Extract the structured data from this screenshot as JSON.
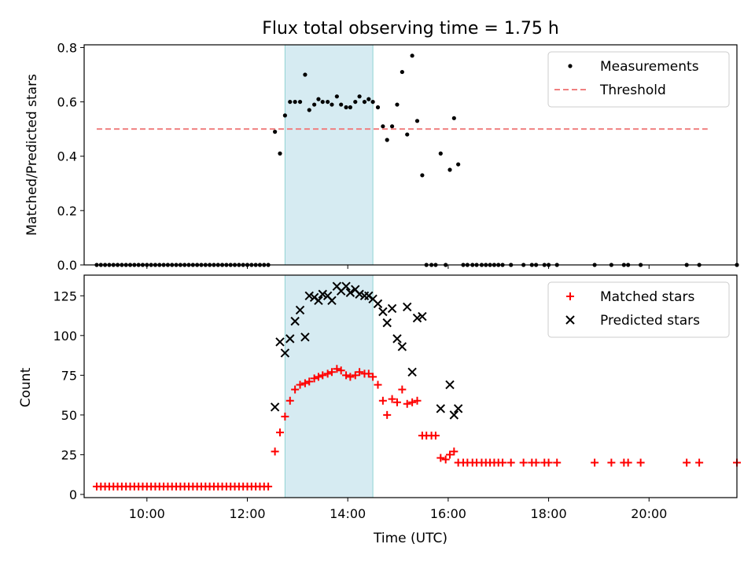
{
  "chart_data": [
    {
      "type": "scatter",
      "title": "Flux total observing time = 1.75 h",
      "xlabel": "",
      "ylabel": "Matched/Predicted stars",
      "xlim": [
        "08:45",
        "21:45"
      ],
      "ylim": [
        0,
        0.81
      ],
      "yticks": [
        "0.0",
        "0.2",
        "0.4",
        "0.6",
        "0.8"
      ],
      "highlight_span": [
        "12:45",
        "14:30"
      ],
      "legend_position": "top-right",
      "series": [
        {
          "name": "Measurements",
          "marker": "dot",
          "color": "#000000",
          "points": [
            [
              "09:00",
              0
            ],
            [
              "09:05",
              0
            ],
            [
              "09:10",
              0
            ],
            [
              "09:15",
              0
            ],
            [
              "09:20",
              0
            ],
            [
              "09:25",
              0
            ],
            [
              "09:30",
              0
            ],
            [
              "09:35",
              0
            ],
            [
              "09:40",
              0
            ],
            [
              "09:45",
              0
            ],
            [
              "09:50",
              0
            ],
            [
              "09:55",
              0
            ],
            [
              "10:00",
              0
            ],
            [
              "10:05",
              0
            ],
            [
              "10:10",
              0
            ],
            [
              "10:15",
              0
            ],
            [
              "10:20",
              0
            ],
            [
              "10:25",
              0
            ],
            [
              "10:30",
              0
            ],
            [
              "10:35",
              0
            ],
            [
              "10:40",
              0
            ],
            [
              "10:45",
              0
            ],
            [
              "10:50",
              0
            ],
            [
              "10:55",
              0
            ],
            [
              "11:00",
              0
            ],
            [
              "11:05",
              0
            ],
            [
              "11:10",
              0
            ],
            [
              "11:15",
              0
            ],
            [
              "11:20",
              0
            ],
            [
              "11:25",
              0
            ],
            [
              "11:30",
              0
            ],
            [
              "11:35",
              0
            ],
            [
              "11:40",
              0
            ],
            [
              "11:45",
              0
            ],
            [
              "11:50",
              0
            ],
            [
              "11:55",
              0
            ],
            [
              "12:00",
              0
            ],
            [
              "12:05",
              0
            ],
            [
              "12:10",
              0
            ],
            [
              "12:15",
              0
            ],
            [
              "12:20",
              0
            ],
            [
              "12:25",
              0
            ],
            [
              "12:33",
              0.49
            ],
            [
              "12:39",
              0.41
            ],
            [
              "12:45",
              0.55
            ],
            [
              "12:51",
              0.6
            ],
            [
              "12:57",
              0.6
            ],
            [
              "13:03",
              0.6
            ],
            [
              "13:09",
              0.7
            ],
            [
              "13:14",
              0.57
            ],
            [
              "13:20",
              0.59
            ],
            [
              "13:25",
              0.61
            ],
            [
              "13:30",
              0.6
            ],
            [
              "13:36",
              0.6
            ],
            [
              "13:41",
              0.59
            ],
            [
              "13:47",
              0.62
            ],
            [
              "13:52",
              0.59
            ],
            [
              "13:58",
              0.58
            ],
            [
              "14:03",
              0.58
            ],
            [
              "14:09",
              0.6
            ],
            [
              "14:14",
              0.62
            ],
            [
              "14:20",
              0.6
            ],
            [
              "14:25",
              0.61
            ],
            [
              "14:30",
              0.6
            ],
            [
              "14:36",
              0.58
            ],
            [
              "14:42",
              0.51
            ],
            [
              "14:47",
              0.46
            ],
            [
              "14:53",
              0.51
            ],
            [
              "14:59",
              0.59
            ],
            [
              "15:05",
              0.71
            ],
            [
              "15:11",
              0.48
            ],
            [
              "15:17",
              0.77
            ],
            [
              "15:23",
              0.53
            ],
            [
              "15:29",
              0.33
            ],
            [
              "15:34",
              0
            ],
            [
              "15:40",
              0
            ],
            [
              "15:45",
              0
            ],
            [
              "15:51",
              0.41
            ],
            [
              "15:57",
              0
            ],
            [
              "16:02",
              0.35
            ],
            [
              "16:07",
              0.54
            ],
            [
              "16:12",
              0.37
            ],
            [
              "16:18",
              0
            ],
            [
              "16:23",
              0
            ],
            [
              "16:29",
              0
            ],
            [
              "16:34",
              0
            ],
            [
              "16:40",
              0
            ],
            [
              "16:45",
              0
            ],
            [
              "16:50",
              0
            ],
            [
              "16:55",
              0
            ],
            [
              "17:00",
              0
            ],
            [
              "17:05",
              0
            ],
            [
              "17:15",
              0
            ],
            [
              "17:30",
              0
            ],
            [
              "17:40",
              0
            ],
            [
              "17:45",
              0
            ],
            [
              "17:55",
              0
            ],
            [
              "18:00",
              0
            ],
            [
              "18:10",
              0
            ],
            [
              "18:55",
              0
            ],
            [
              "19:15",
              0
            ],
            [
              "19:30",
              0
            ],
            [
              "19:35",
              0
            ],
            [
              "19:50",
              0
            ],
            [
              "20:45",
              0
            ],
            [
              "21:00",
              0
            ],
            [
              "21:45",
              0
            ]
          ]
        },
        {
          "name": "Threshold",
          "marker": "dashed-line",
          "color": "#f08080",
          "points": [
            [
              "09:00",
              0.5
            ],
            [
              "21:10",
              0.5
            ]
          ]
        }
      ]
    },
    {
      "type": "scatter",
      "title": "",
      "xlabel": "Time (UTC)",
      "ylabel": "Count",
      "xlim": [
        "08:45",
        "21:45"
      ],
      "ylim": [
        -2,
        138
      ],
      "yticks": [
        "0",
        "25",
        "50",
        "75",
        "100",
        "125"
      ],
      "xticks": [
        "10:00",
        "12:00",
        "14:00",
        "16:00",
        "18:00",
        "20:00"
      ],
      "highlight_span": [
        "12:45",
        "14:30"
      ],
      "legend_position": "top-right",
      "series": [
        {
          "name": "Matched stars",
          "marker": "plus",
          "color": "#ff0000",
          "points": [
            [
              "09:00",
              5
            ],
            [
              "09:05",
              5
            ],
            [
              "09:10",
              5
            ],
            [
              "09:15",
              5
            ],
            [
              "09:20",
              5
            ],
            [
              "09:25",
              5
            ],
            [
              "09:30",
              5
            ],
            [
              "09:35",
              5
            ],
            [
              "09:40",
              5
            ],
            [
              "09:45",
              5
            ],
            [
              "09:50",
              5
            ],
            [
              "09:55",
              5
            ],
            [
              "10:00",
              5
            ],
            [
              "10:05",
              5
            ],
            [
              "10:10",
              5
            ],
            [
              "10:15",
              5
            ],
            [
              "10:20",
              5
            ],
            [
              "10:25",
              5
            ],
            [
              "10:30",
              5
            ],
            [
              "10:35",
              5
            ],
            [
              "10:40",
              5
            ],
            [
              "10:45",
              5
            ],
            [
              "10:50",
              5
            ],
            [
              "10:55",
              5
            ],
            [
              "11:00",
              5
            ],
            [
              "11:05",
              5
            ],
            [
              "11:10",
              5
            ],
            [
              "11:15",
              5
            ],
            [
              "11:20",
              5
            ],
            [
              "11:25",
              5
            ],
            [
              "11:30",
              5
            ],
            [
              "11:35",
              5
            ],
            [
              "11:40",
              5
            ],
            [
              "11:45",
              5
            ],
            [
              "11:50",
              5
            ],
            [
              "11:55",
              5
            ],
            [
              "12:00",
              5
            ],
            [
              "12:05",
              5
            ],
            [
              "12:10",
              5
            ],
            [
              "12:15",
              5
            ],
            [
              "12:20",
              5
            ],
            [
              "12:25",
              5
            ],
            [
              "12:33",
              27
            ],
            [
              "12:39",
              39
            ],
            [
              "12:45",
              49
            ],
            [
              "12:51",
              59
            ],
            [
              "12:57",
              66
            ],
            [
              "13:03",
              69
            ],
            [
              "13:09",
              70
            ],
            [
              "13:14",
              71
            ],
            [
              "13:20",
              73
            ],
            [
              "13:25",
              74
            ],
            [
              "13:30",
              75
            ],
            [
              "13:36",
              76
            ],
            [
              "13:41",
              77
            ],
            [
              "13:47",
              79
            ],
            [
              "13:52",
              78
            ],
            [
              "13:58",
              75
            ],
            [
              "14:03",
              74
            ],
            [
              "14:09",
              75
            ],
            [
              "14:14",
              77
            ],
            [
              "14:20",
              76
            ],
            [
              "14:25",
              76
            ],
            [
              "14:30",
              74
            ],
            [
              "14:36",
              69
            ],
            [
              "14:42",
              59
            ],
            [
              "14:47",
              50
            ],
            [
              "14:53",
              60
            ],
            [
              "14:59",
              58
            ],
            [
              "15:05",
              66
            ],
            [
              "15:11",
              57
            ],
            [
              "15:17",
              58
            ],
            [
              "15:23",
              59
            ],
            [
              "15:29",
              37
            ],
            [
              "15:34",
              37
            ],
            [
              "15:40",
              37
            ],
            [
              "15:45",
              37
            ],
            [
              "15:51",
              23
            ],
            [
              "15:57",
              22
            ],
            [
              "16:02",
              25
            ],
            [
              "16:07",
              27
            ],
            [
              "16:12",
              20
            ],
            [
              "16:18",
              20
            ],
            [
              "16:23",
              20
            ],
            [
              "16:29",
              20
            ],
            [
              "16:34",
              20
            ],
            [
              "16:40",
              20
            ],
            [
              "16:45",
              20
            ],
            [
              "16:50",
              20
            ],
            [
              "16:55",
              20
            ],
            [
              "17:00",
              20
            ],
            [
              "17:05",
              20
            ],
            [
              "17:15",
              20
            ],
            [
              "17:30",
              20
            ],
            [
              "17:40",
              20
            ],
            [
              "17:45",
              20
            ],
            [
              "17:55",
              20
            ],
            [
              "18:00",
              20
            ],
            [
              "18:10",
              20
            ],
            [
              "18:55",
              20
            ],
            [
              "19:15",
              20
            ],
            [
              "19:30",
              20
            ],
            [
              "19:35",
              20
            ],
            [
              "19:50",
              20
            ],
            [
              "20:45",
              20
            ],
            [
              "21:00",
              20
            ],
            [
              "21:45",
              20
            ]
          ]
        },
        {
          "name": "Predicted stars",
          "marker": "x",
          "color": "#000000",
          "points": [
            [
              "12:33",
              55
            ],
            [
              "12:39",
              96
            ],
            [
              "12:45",
              89
            ],
            [
              "12:51",
              98
            ],
            [
              "12:57",
              109
            ],
            [
              "13:03",
              116
            ],
            [
              "13:09",
              99
            ],
            [
              "13:14",
              125
            ],
            [
              "13:20",
              124
            ],
            [
              "13:25",
              122
            ],
            [
              "13:30",
              126
            ],
            [
              "13:36",
              125
            ],
            [
              "13:41",
              122
            ],
            [
              "13:47",
              131
            ],
            [
              "13:52",
              128
            ],
            [
              "13:58",
              131
            ],
            [
              "14:03",
              127
            ],
            [
              "14:09",
              129
            ],
            [
              "14:14",
              126
            ],
            [
              "14:20",
              125
            ],
            [
              "14:25",
              125
            ],
            [
              "14:30",
              123
            ],
            [
              "14:36",
              120
            ],
            [
              "14:42",
              115
            ],
            [
              "14:47",
              108
            ],
            [
              "14:53",
              117
            ],
            [
              "14:59",
              98
            ],
            [
              "15:05",
              93
            ],
            [
              "15:11",
              118
            ],
            [
              "15:17",
              77
            ],
            [
              "15:23",
              111
            ],
            [
              "15:29",
              112
            ],
            [
              "15:51",
              54
            ],
            [
              "16:02",
              69
            ],
            [
              "16:07",
              50
            ],
            [
              "16:12",
              54
            ]
          ]
        }
      ]
    }
  ]
}
